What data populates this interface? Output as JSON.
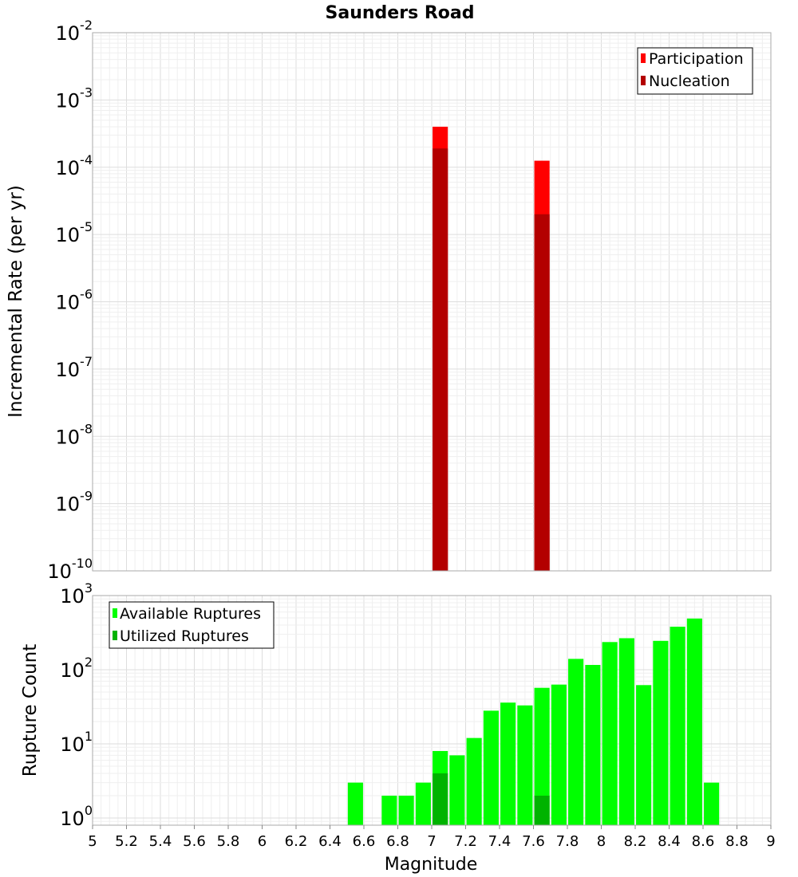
{
  "colors": {
    "participation": "#ff0000",
    "nucleation": "#b30000",
    "available": "#00ff00",
    "utilized": "#00b300",
    "grid": "#e6e6e6",
    "frame": "#aaaaaa"
  },
  "chart_data": [
    {
      "type": "bar",
      "title": "Saunders Road",
      "xlabel": "",
      "ylabel": "Incremental Rate (per yr)",
      "yscale": "log",
      "ylim": [
        1e-10,
        0.01
      ],
      "xlim": [
        5,
        9
      ],
      "y_tick_labels": [
        {
          "base": "10",
          "exp": "-10"
        },
        {
          "base": "10",
          "exp": "-9"
        },
        {
          "base": "10",
          "exp": "-8"
        },
        {
          "base": "10",
          "exp": "-7"
        },
        {
          "base": "10",
          "exp": "-6"
        },
        {
          "base": "10",
          "exp": "-5"
        },
        {
          "base": "10",
          "exp": "-4"
        },
        {
          "base": "10",
          "exp": "-3"
        },
        {
          "base": "10",
          "exp": "-2"
        }
      ],
      "legend": {
        "position": "top-right",
        "entries": [
          "Participation",
          "Nucleation"
        ]
      },
      "grid": true,
      "series": [
        {
          "name": "Participation",
          "x": [
            7.05,
            7.65
          ],
          "values": [
            0.0004,
            0.000125
          ]
        },
        {
          "name": "Nucleation",
          "x": [
            7.05,
            7.65
          ],
          "values": [
            0.00019,
            2e-05
          ]
        }
      ]
    },
    {
      "type": "bar",
      "title": "",
      "xlabel": "Magnitude",
      "ylabel": "Rupture Count",
      "yscale": "log",
      "ylim": [
        0.8,
        1000
      ],
      "xlim": [
        5,
        9
      ],
      "x_ticks": [
        "5",
        "5.2",
        "5.4",
        "5.6",
        "5.8",
        "6",
        "6.2",
        "6.4",
        "6.6",
        "6.8",
        "7",
        "7.2",
        "7.4",
        "7.6",
        "7.8",
        "8",
        "8.2",
        "8.4",
        "8.6",
        "8.8",
        "9"
      ],
      "y_tick_labels": [
        {
          "base": "10",
          "exp": "0"
        },
        {
          "base": "10",
          "exp": "1"
        },
        {
          "base": "10",
          "exp": "2"
        },
        {
          "base": "10",
          "exp": "3"
        }
      ],
      "legend": {
        "position": "top-left",
        "entries": [
          "Available Ruptures",
          "Utilized Ruptures"
        ]
      },
      "grid": true,
      "series": [
        {
          "name": "Available Ruptures",
          "x": [
            6.55,
            6.75,
            6.85,
            6.95,
            7.05,
            7.15,
            7.25,
            7.35,
            7.45,
            7.55,
            7.65,
            7.75,
            7.85,
            7.95,
            8.05,
            8.15,
            8.25,
            8.35,
            8.45,
            8.55,
            8.65
          ],
          "values": [
            3,
            2,
            2,
            3,
            8,
            7,
            12,
            28,
            36,
            33,
            57,
            63,
            140,
            116,
            236,
            266,
            62,
            245,
            380,
            490,
            3
          ]
        },
        {
          "name": "Utilized Ruptures",
          "x": [
            7.05,
            7.65
          ],
          "values": [
            4,
            2
          ]
        }
      ]
    }
  ]
}
